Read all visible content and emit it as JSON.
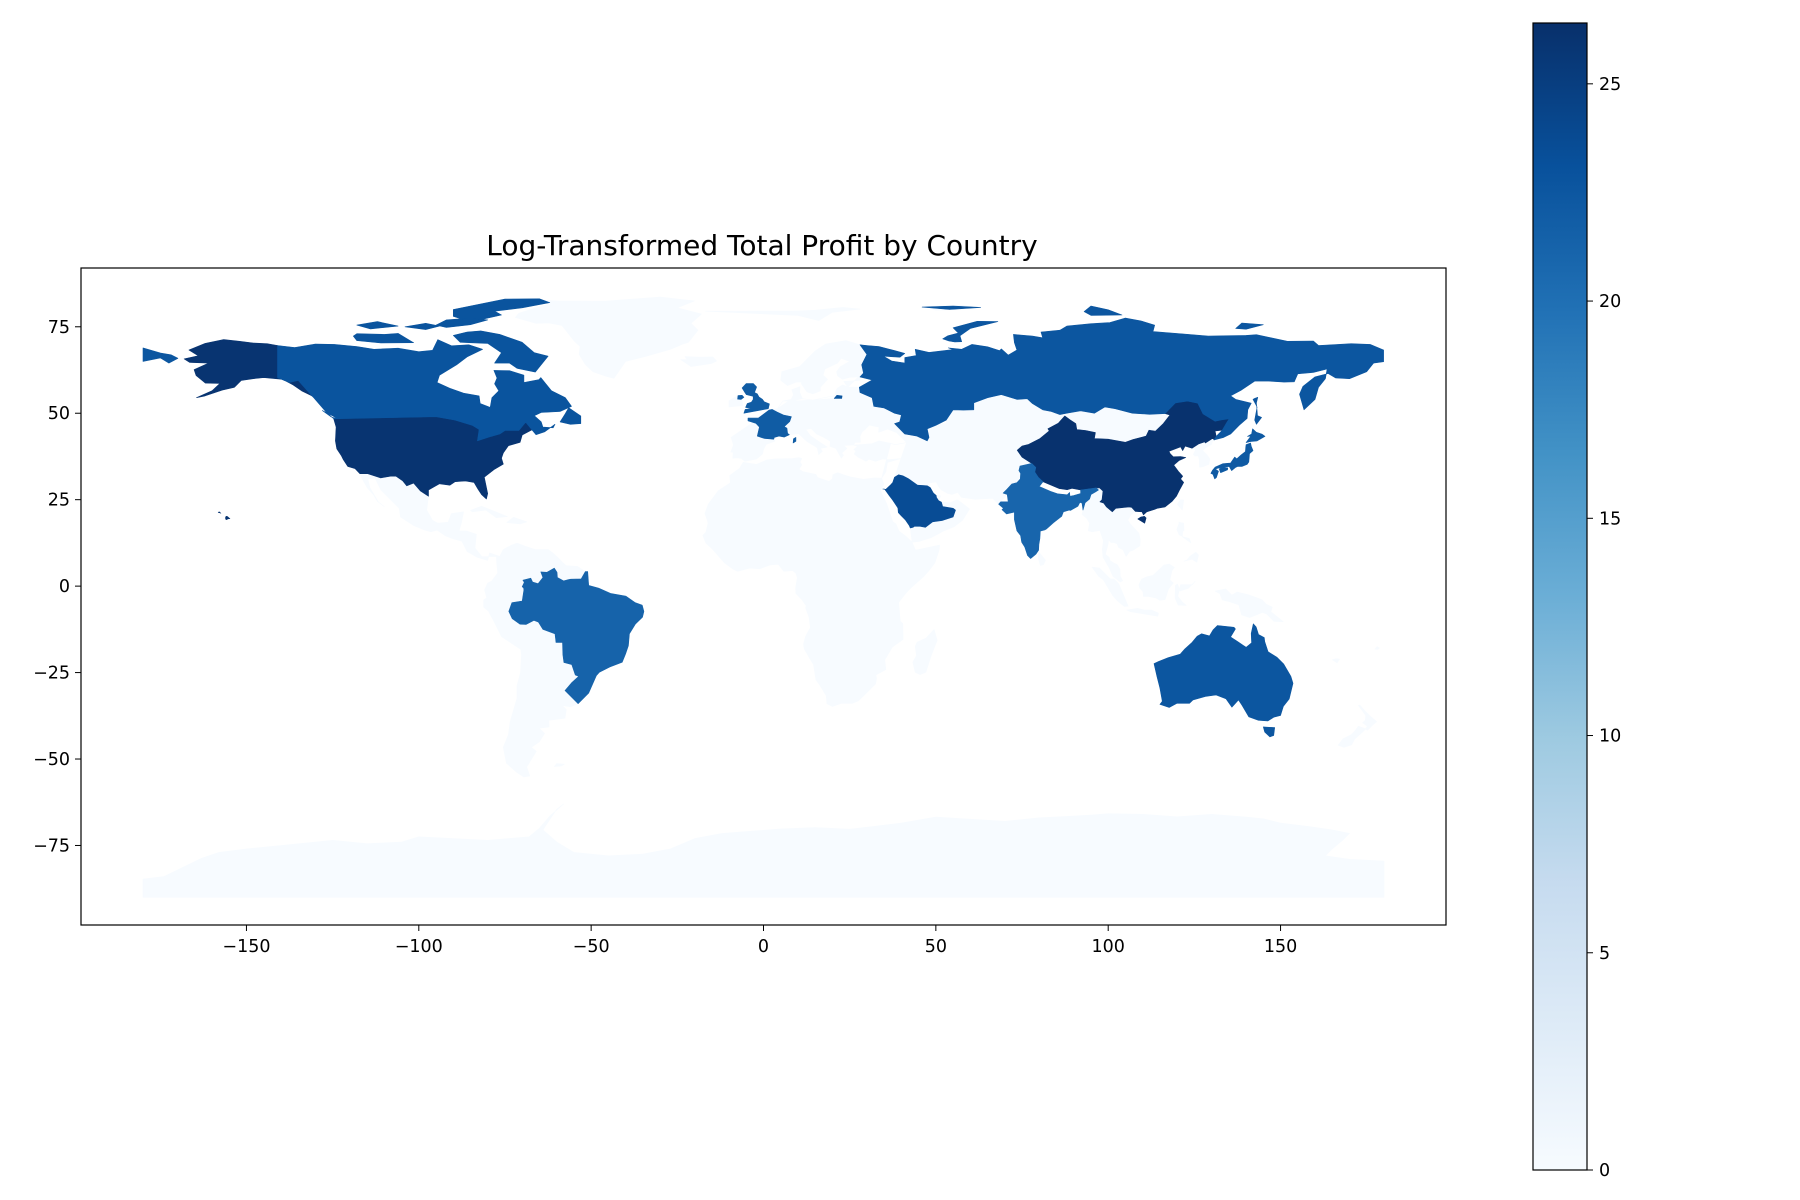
{
  "chart_data": {
    "type": "choropleth",
    "title": "Log-Transformed Total Profit by Country",
    "xlim": [
      -198,
      198
    ],
    "ylim": [
      -98,
      92
    ],
    "xticks": [
      -150,
      -100,
      -50,
      0,
      50,
      100,
      150
    ],
    "xtick_labels": [
      "−150",
      "−100",
      "−50",
      "0",
      "50",
      "100",
      "150"
    ],
    "yticks": [
      75,
      50,
      25,
      0,
      -25,
      -50,
      -75
    ],
    "ytick_labels": [
      "75",
      "50",
      "25",
      "0",
      "−25",
      "−50",
      "−75"
    ],
    "colorbar": {
      "cmap": "Blues",
      "min": 0,
      "max": 26.4,
      "ticks": [
        0,
        5,
        10,
        15,
        20,
        25
      ],
      "tick_labels": [
        "0",
        "5",
        "10",
        "15",
        "20",
        "25"
      ]
    },
    "regions": [
      {
        "name": "United States of America",
        "value": 26.0
      },
      {
        "name": "China",
        "value": 26.2
      },
      {
        "name": "Canada",
        "value": 22.8
      },
      {
        "name": "Russia",
        "value": 22.6
      },
      {
        "name": "United Kingdom",
        "value": 22.0
      },
      {
        "name": "France",
        "value": 22.0
      },
      {
        "name": "Japan",
        "value": 22.2
      },
      {
        "name": "Saudi Arabia",
        "value": 23.6
      },
      {
        "name": "India",
        "value": 21.0
      },
      {
        "name": "Brazil",
        "value": 21.2
      },
      {
        "name": "Australia",
        "value": 22.6
      },
      {
        "name": "Other countries",
        "value": 0
      }
    ]
  }
}
